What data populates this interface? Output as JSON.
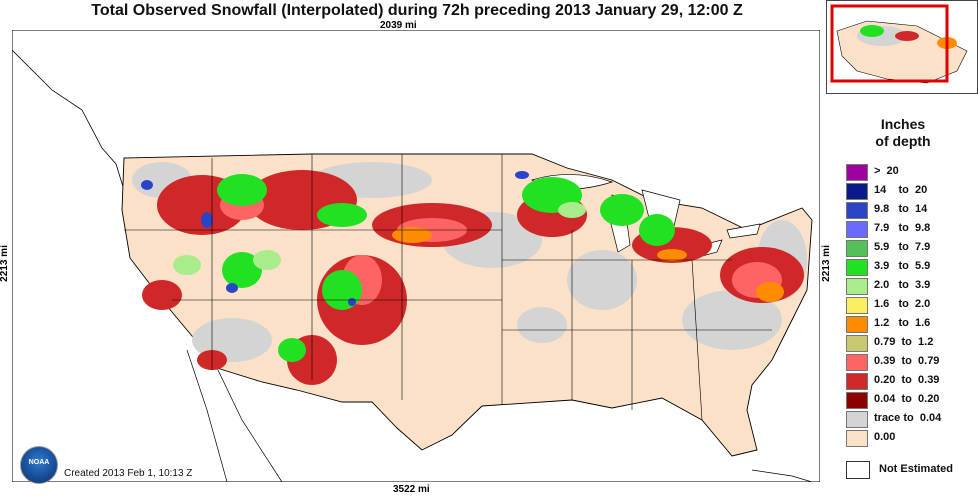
{
  "title": "Total Observed Snowfall (Interpolated) during 72h preceding 2013 January 29, 12:00 Z",
  "dimensions": {
    "top": "2039 mi",
    "bottom": "3522 mi",
    "left": "2213 mi",
    "right": "2213 mi"
  },
  "created": "Created 2013 Feb 1, 10:13 Z",
  "logo_text": "NOAA",
  "legend": {
    "title_line1": "Inches",
    "title_line2": "of depth",
    "items": [
      {
        "label": ">  20",
        "color": "#a000a0"
      },
      {
        "label": "14    to  20",
        "color": "#0a1a8c"
      },
      {
        "label": "9.8   to  14",
        "color": "#2a44c8"
      },
      {
        "label": "7.9   to  9.8",
        "color": "#6a6aff"
      },
      {
        "label": "5.9   to  7.9",
        "color": "#55c055"
      },
      {
        "label": "3.9   to  5.9",
        "color": "#22e022"
      },
      {
        "label": "2.0   to  3.9",
        "color": "#a8ec8c"
      },
      {
        "label": "1.6   to  2.0",
        "color": "#f8f060"
      },
      {
        "label": "1.2   to  1.6",
        "color": "#ff8c00"
      },
      {
        "label": "0.79  to  1.2",
        "color": "#c8c870"
      },
      {
        "label": "0.39  to  0.79",
        "color": "#ff6464"
      },
      {
        "label": "0.20  to  0.39",
        "color": "#d02828"
      },
      {
        "label": "0.04  to  0.20",
        "color": "#8c0000"
      },
      {
        "label": "trace to  0.04",
        "color": "#d4d4d4"
      },
      {
        "label": "0.00",
        "color": "#fbe1c8"
      }
    ],
    "not_estimated": "Not Estimated"
  }
}
